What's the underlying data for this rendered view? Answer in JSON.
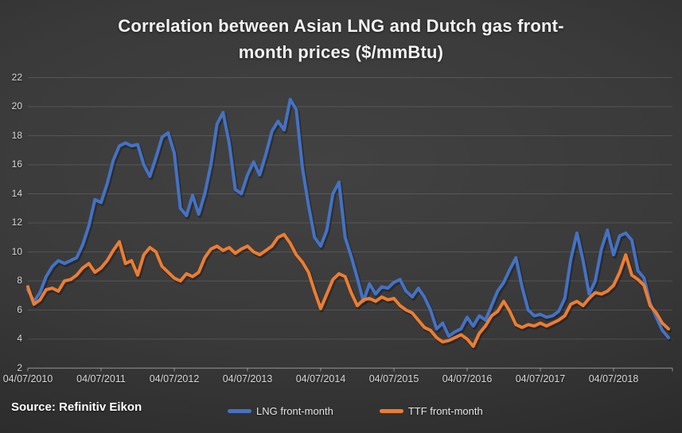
{
  "source_label": "Source: Refinitiv Eikon",
  "chart_data": {
    "type": "line",
    "title": "Correlation between Asian LNG and Dutch gas front-month prices ($/mmBtu)",
    "ylabel": "",
    "xlabel": "",
    "ylim": [
      2,
      22
    ],
    "y_ticks": [
      2,
      4,
      6,
      8,
      10,
      12,
      14,
      16,
      18,
      20,
      22
    ],
    "x_tick_labels": [
      "04/07/2010",
      "04/07/2011",
      "04/07/2012",
      "04/07/2013",
      "04/07/2014",
      "04/07/2015",
      "04/07/2016",
      "04/07/2017",
      "04/07/2018"
    ],
    "x_unit": "monthly points starting 04/07/2010, one tick per year",
    "grid": "horizontal",
    "legend_position": "bottom-center",
    "series": [
      {
        "id": "lng",
        "name": "LNG front-month",
        "color": "#4472C4",
        "values": [
          7.4,
          6.6,
          7.2,
          8.3,
          9.0,
          9.4,
          9.2,
          9.4,
          9.6,
          10.5,
          11.8,
          13.6,
          13.4,
          14.7,
          16.3,
          17.3,
          17.5,
          17.3,
          17.4,
          16.0,
          15.2,
          16.5,
          17.9,
          18.2,
          16.8,
          13.0,
          12.5,
          13.9,
          12.6,
          14.0,
          16.0,
          18.8,
          19.6,
          17.5,
          14.3,
          14.0,
          15.3,
          16.2,
          15.3,
          16.7,
          18.3,
          19.0,
          18.4,
          20.5,
          19.8,
          15.8,
          13.2,
          11.0,
          10.4,
          11.5,
          14.0,
          14.8,
          11.0,
          9.7,
          8.2,
          6.6,
          7.8,
          7.1,
          7.6,
          7.5,
          7.9,
          8.1,
          7.3,
          6.9,
          7.5,
          6.9,
          6.0,
          4.7,
          5.1,
          4.2,
          4.5,
          4.7,
          5.5,
          4.9,
          5.6,
          5.3,
          6.3,
          7.3,
          7.9,
          8.8,
          9.6,
          7.6,
          6.0,
          5.6,
          5.7,
          5.5,
          5.6,
          5.9,
          6.8,
          9.5,
          11.3,
          9.4,
          7.1,
          8.0,
          10.2,
          11.5,
          9.8,
          11.1,
          11.3,
          10.8,
          8.7,
          8.2,
          6.5,
          5.5,
          4.6,
          4.1
        ]
      },
      {
        "id": "ttf",
        "name": "TTF front-month",
        "color": "#ED7D31",
        "values": [
          7.6,
          6.4,
          6.7,
          7.4,
          7.5,
          7.3,
          8.0,
          8.1,
          8.4,
          8.9,
          9.2,
          8.6,
          8.9,
          9.4,
          10.1,
          10.7,
          9.2,
          9.4,
          8.4,
          9.8,
          10.3,
          10.0,
          9.0,
          8.6,
          8.2,
          8.0,
          8.5,
          8.3,
          8.6,
          9.6,
          10.2,
          10.4,
          10.1,
          10.3,
          9.9,
          10.2,
          10.4,
          10.0,
          9.8,
          10.1,
          10.4,
          11.0,
          11.2,
          10.6,
          9.8,
          9.3,
          8.6,
          7.3,
          6.1,
          7.1,
          8.1,
          8.5,
          8.3,
          7.2,
          6.3,
          6.7,
          6.8,
          6.6,
          6.9,
          6.7,
          6.8,
          6.3,
          6.0,
          5.8,
          5.3,
          4.8,
          4.6,
          4.1,
          3.8,
          3.9,
          4.1,
          4.3,
          4.0,
          3.5,
          4.4,
          4.9,
          5.6,
          5.9,
          6.6,
          5.9,
          5.0,
          4.8,
          5.0,
          4.9,
          5.1,
          4.9,
          5.1,
          5.3,
          5.6,
          6.4,
          6.6,
          6.3,
          6.8,
          7.2,
          7.1,
          7.3,
          7.7,
          8.6,
          9.8,
          8.4,
          8.1,
          7.7,
          6.3,
          5.8,
          5.1,
          4.7
        ]
      }
    ]
  }
}
